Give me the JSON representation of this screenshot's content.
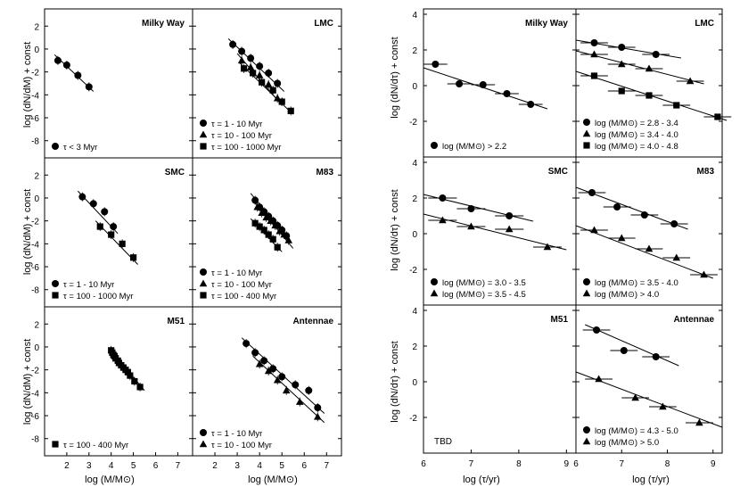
{
  "left_figure": {
    "ylabel": "log (dN/dM) + const",
    "xlabel": "log (M/M⊙)",
    "xticks": [
      "2",
      "3",
      "4",
      "5",
      "6",
      "7"
    ],
    "yticks": [
      "2",
      "0",
      "-2",
      "-4",
      "-6",
      "-8"
    ]
  },
  "right_figure": {
    "ylabel": "log (dN/dτ) + const",
    "xlabel": "log (τ/yr)",
    "xticks": [
      "6",
      "7",
      "8",
      "9",
      "6",
      "7",
      "8",
      "9"
    ],
    "yticks": [
      "4",
      "2",
      "0",
      "-2"
    ]
  },
  "chart_data": [
    {
      "type": "scatter",
      "panel": "mass-milky-way",
      "title": "Milky Way",
      "xlim": [
        1,
        7.6
      ],
      "ylim": [
        -9.5,
        3.5
      ],
      "series": [
        {
          "name": "τ < 3 Myr",
          "marker": "circle",
          "x": [
            1.6,
            2.0,
            2.5,
            3.0
          ],
          "y": [
            -1.0,
            -1.4,
            -2.3,
            -3.3
          ],
          "fit": [
            [
              1.45,
              -0.5
            ],
            [
              3.2,
              -3.7
            ]
          ]
        }
      ]
    },
    {
      "type": "scatter",
      "panel": "mass-lmc",
      "title": "LMC",
      "xlim": [
        1,
        7.6
      ],
      "ylim": [
        -9.5,
        3.5
      ],
      "series": [
        {
          "name": "τ = 1 - 10 Myr",
          "marker": "circle",
          "x": [
            2.8,
            3.2,
            3.6,
            4.0,
            4.4,
            4.8
          ],
          "y": [
            0.4,
            -0.2,
            -0.8,
            -1.5,
            -2.1,
            -3.0
          ],
          "fit": [
            [
              2.6,
              0.9
            ],
            [
              5.1,
              -3.7
            ]
          ]
        },
        {
          "name": "τ = 10 - 100 Myr",
          "marker": "triangle",
          "x": [
            3.2,
            3.6,
            4.0,
            4.4,
            4.8
          ],
          "y": [
            -1.0,
            -1.6,
            -2.3,
            -3.1,
            -4.3
          ],
          "fit": [
            [
              3.0,
              -0.4
            ],
            [
              5.0,
              -4.9
            ]
          ]
        },
        {
          "name": "τ = 100 - 1000 Myr",
          "marker": "square",
          "x": [
            3.3,
            3.7,
            4.1,
            4.6,
            5.0,
            5.4
          ],
          "y": [
            -1.7,
            -2.1,
            -2.9,
            -3.6,
            -4.6,
            -5.4
          ],
          "fit": [
            [
              3.1,
              -1.2
            ],
            [
              5.5,
              -5.7
            ]
          ]
        }
      ]
    },
    {
      "type": "scatter",
      "panel": "mass-smc",
      "title": "SMC",
      "xlim": [
        1,
        7.6
      ],
      "ylim": [
        -9.5,
        3.5
      ],
      "series": [
        {
          "name": "τ = 1 - 10 Myr",
          "marker": "circle",
          "x": [
            2.7,
            3.2,
            3.7,
            4.1
          ],
          "y": [
            0.1,
            -0.5,
            -1.2,
            -2.5
          ],
          "fit": [
            [
              2.5,
              0.6
            ],
            [
              4.3,
              -3.1
            ]
          ]
        },
        {
          "name": "τ = 100 - 1000 Myr",
          "marker": "square",
          "x": [
            3.5,
            4.0,
            4.5,
            5.0
          ],
          "y": [
            -2.5,
            -3.2,
            -4.0,
            -5.2
          ],
          "fit": [
            [
              3.3,
              -2.0
            ],
            [
              5.2,
              -5.8
            ]
          ]
        }
      ]
    },
    {
      "type": "scatter",
      "panel": "mass-m83",
      "title": "M83",
      "xlim": [
        1,
        7.6
      ],
      "ylim": [
        -9.5,
        3.5
      ],
      "series": [
        {
          "name": "τ = 1 - 10 Myr",
          "marker": "circle",
          "x": [
            3.8,
            4.0,
            4.2,
            4.4,
            4.6,
            4.8,
            5.0,
            5.2
          ],
          "y": [
            -0.2,
            -0.8,
            -1.2,
            -1.6,
            -2.0,
            -2.4,
            -2.8,
            -3.3
          ],
          "fit": [
            [
              3.6,
              0.4
            ],
            [
              5.4,
              -3.8
            ]
          ]
        },
        {
          "name": "τ = 10 - 100 Myr",
          "marker": "triangle",
          "x": [
            3.9,
            4.1,
            4.3,
            4.5,
            4.7,
            4.9,
            5.1,
            5.3
          ],
          "y": [
            -0.8,
            -1.3,
            -1.7,
            -2.0,
            -2.4,
            -2.9,
            -3.2,
            -3.7
          ],
          "fit": [
            [
              3.7,
              -0.2
            ],
            [
              5.5,
              -4.4
            ]
          ]
        },
        {
          "name": "τ = 100 - 400 Myr",
          "marker": "square",
          "x": [
            3.8,
            4.0,
            4.2,
            4.4,
            4.6,
            4.8
          ],
          "y": [
            -2.2,
            -2.5,
            -2.8,
            -3.2,
            -3.6,
            -4.3
          ],
          "fit": [
            [
              3.6,
              -1.8
            ],
            [
              5.0,
              -4.7
            ]
          ]
        }
      ]
    },
    {
      "type": "scatter",
      "panel": "mass-m51",
      "title": "M51",
      "xlim": [
        1,
        7.6
      ],
      "ylim": [
        -9.5,
        3.5
      ],
      "series": [
        {
          "name": "τ = 100 - 400 Myr",
          "marker": "square",
          "x": [
            4.0,
            4.05,
            4.1,
            4.15,
            4.2,
            4.3,
            4.35,
            4.45,
            4.55,
            4.65,
            4.75,
            4.85,
            5.05,
            5.3
          ],
          "y": [
            -0.3,
            -0.5,
            -0.7,
            -0.8,
            -1.0,
            -1.2,
            -1.4,
            -1.6,
            -1.8,
            -2.0,
            -2.2,
            -2.5,
            -3.0,
            -3.5
          ],
          "fit": [
            [
              3.9,
              -0.1
            ],
            [
              5.5,
              -3.8
            ]
          ]
        }
      ]
    },
    {
      "type": "scatter",
      "panel": "mass-antennae",
      "title": "Antennae",
      "xlim": [
        1,
        7.6
      ],
      "ylim": [
        -9.5,
        3.5
      ],
      "series": [
        {
          "name": "τ = 1 - 10 Myr",
          "marker": "circle",
          "x": [
            3.4,
            3.8,
            4.2,
            4.6,
            5.0,
            5.6,
            6.2,
            6.6
          ],
          "y": [
            0.3,
            -0.5,
            -1.2,
            -1.9,
            -2.6,
            -3.3,
            -3.8,
            -5.3
          ],
          "fit": [
            [
              3.2,
              0.8
            ],
            [
              6.9,
              -5.8
            ]
          ]
        },
        {
          "name": "τ = 10 - 100 Myr",
          "marker": "triangle",
          "x": [
            4.0,
            4.4,
            4.8,
            5.2,
            5.8,
            6.6
          ],
          "y": [
            -1.5,
            -2.1,
            -2.9,
            -3.8,
            -4.8,
            -6.1
          ],
          "fit": [
            [
              3.7,
              -0.8
            ],
            [
              6.9,
              -6.6
            ]
          ]
        }
      ]
    },
    {
      "type": "scatter",
      "panel": "age-milky-way",
      "title": "Milky Way",
      "xlim": [
        6,
        9.2
      ],
      "ylim": [
        -4,
        4.3
      ],
      "series": [
        {
          "name": "log (M/M⊙) > 2.2",
          "marker": "circle",
          "x": [
            6.25,
            6.75,
            7.25,
            7.75,
            8.25
          ],
          "y": [
            1.2,
            0.1,
            0.05,
            -0.45,
            -1.05
          ],
          "xerr": 0.25,
          "fit": [
            [
              6.0,
              1.0
            ],
            [
              8.6,
              -1.3
            ]
          ]
        }
      ]
    },
    {
      "type": "scatter",
      "panel": "age-lmc",
      "title": "LMC",
      "xlim": [
        6,
        9.2
      ],
      "ylim": [
        -4,
        4.3
      ],
      "series": [
        {
          "name": "log (M/M⊙) = 2.8 - 3.4",
          "marker": "circle",
          "x": [
            6.4,
            7.0,
            7.75
          ],
          "y": [
            2.4,
            2.15,
            1.75
          ],
          "xerr": 0.3,
          "fit": [
            [
              6.0,
              2.55
            ],
            [
              8.3,
              1.55
            ]
          ]
        },
        {
          "name": "log (M/M⊙) = 3.4 - 4.0",
          "marker": "triangle",
          "x": [
            6.4,
            7.0,
            7.6,
            8.5
          ],
          "y": [
            1.75,
            1.2,
            0.95,
            0.25
          ],
          "xerr": 0.3,
          "fit": [
            [
              6.0,
              1.95
            ],
            [
              8.8,
              0.1
            ]
          ]
        },
        {
          "name": "log (M/M⊙) = 4.0 - 4.8",
          "marker": "square",
          "x": [
            6.4,
            7.0,
            7.6,
            8.2,
            9.1
          ],
          "y": [
            0.55,
            -0.3,
            -0.55,
            -1.1,
            -1.75
          ],
          "xerr": 0.3,
          "fit": [
            [
              6.0,
              0.8
            ],
            [
              9.3,
              -1.95
            ]
          ]
        }
      ]
    },
    {
      "type": "scatter",
      "panel": "age-smc",
      "title": "SMC",
      "xlim": [
        6,
        9.2
      ],
      "ylim": [
        -4,
        4.3
      ],
      "series": [
        {
          "name": "log (M/M⊙) = 3.0 - 3.5",
          "marker": "circle",
          "x": [
            6.4,
            7.0,
            7.8
          ],
          "y": [
            2.0,
            1.4,
            1.0
          ],
          "xerr": 0.3,
          "fit": [
            [
              6.0,
              2.2
            ],
            [
              8.3,
              0.7
            ]
          ]
        },
        {
          "name": "log (M/M⊙) = 3.5 - 4.5",
          "marker": "triangle",
          "x": [
            6.4,
            7.0,
            7.8,
            8.6
          ],
          "y": [
            0.75,
            0.4,
            0.25,
            -0.75
          ],
          "xerr": 0.3,
          "fit": [
            [
              6.0,
              1.1
            ],
            [
              9.0,
              -0.9
            ]
          ]
        }
      ]
    },
    {
      "type": "scatter",
      "panel": "age-m83",
      "title": "M83",
      "xlim": [
        6,
        9.2
      ],
      "ylim": [
        -4,
        4.3
      ],
      "series": [
        {
          "name": "log (M/M⊙) = 3.5 - 4.0",
          "marker": "circle",
          "x": [
            6.35,
            6.9,
            7.5,
            8.15
          ],
          "y": [
            2.3,
            1.5,
            1.05,
            0.55
          ],
          "xerr": 0.3,
          "fit": [
            [
              6.0,
              2.6
            ],
            [
              8.45,
              0.25
            ]
          ]
        },
        {
          "name": "log (M/M⊙) > 4.0",
          "marker": "triangle",
          "x": [
            6.4,
            7.0,
            7.6,
            8.2,
            8.8
          ],
          "y": [
            0.2,
            -0.25,
            -0.85,
            -1.35,
            -2.3
          ],
          "xerr": 0.3,
          "fit": [
            [
              6.0,
              0.45
            ],
            [
              9.0,
              -2.5
            ]
          ]
        }
      ]
    },
    {
      "type": "scatter",
      "panel": "age-m51",
      "title": "M51",
      "xlim": [
        6,
        9.2
      ],
      "ylim": [
        -4,
        4.3
      ],
      "annotation": "TBD",
      "series": []
    },
    {
      "type": "scatter",
      "panel": "age-antennae",
      "title": "Antennae",
      "xlim": [
        6,
        9.2
      ],
      "ylim": [
        -4,
        4.3
      ],
      "series": [
        {
          "name": "log (M/M⊙) = 4.3 - 5.0",
          "marker": "circle",
          "x": [
            6.45,
            7.05,
            7.75
          ],
          "y": [
            2.9,
            1.75,
            1.4
          ],
          "xerr": 0.3,
          "fit": [
            [
              6.2,
              3.2
            ],
            [
              8.25,
              0.9
            ]
          ]
        },
        {
          "name": "log (M/M⊙) > 5.0",
          "marker": "triangle",
          "x": [
            6.5,
            7.3,
            7.9,
            8.7
          ],
          "y": [
            0.15,
            -0.9,
            -1.4,
            -2.3
          ],
          "xerr": 0.3,
          "fit": [
            [
              6.0,
              0.55
            ],
            [
              9.2,
              -2.55
            ]
          ]
        }
      ]
    }
  ]
}
